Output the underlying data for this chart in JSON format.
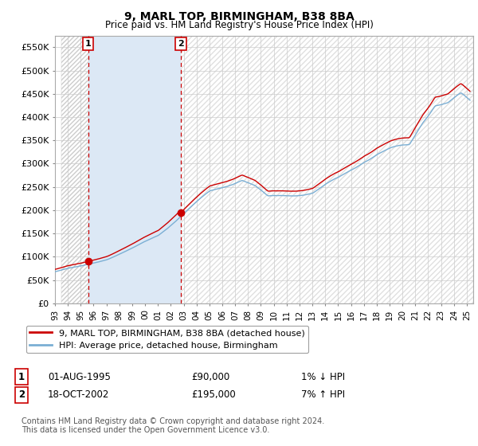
{
  "title": "9, MARL TOP, BIRMINGHAM, B38 8BA",
  "subtitle": "Price paid vs. HM Land Registry's House Price Index (HPI)",
  "ylabel_ticks": [
    "£0",
    "£50K",
    "£100K",
    "£150K",
    "£200K",
    "£250K",
    "£300K",
    "£350K",
    "£400K",
    "£450K",
    "£500K",
    "£550K"
  ],
  "ytick_vals": [
    0,
    50000,
    100000,
    150000,
    200000,
    250000,
    300000,
    350000,
    400000,
    450000,
    500000,
    550000
  ],
  "ylim": [
    0,
    575000
  ],
  "hpi_color": "#7bafd4",
  "price_color": "#cc0000",
  "sale1_date_num": 1995.58,
  "sale1_price": 90000,
  "sale2_date_num": 2002.79,
  "sale2_price": 195000,
  "legend_label1": "9, MARL TOP, BIRMINGHAM, B38 8BA (detached house)",
  "legend_label2": "HPI: Average price, detached house, Birmingham",
  "table_row1": [
    "1",
    "01-AUG-1995",
    "£90,000",
    "1% ↓ HPI"
  ],
  "table_row2": [
    "2",
    "18-OCT-2002",
    "£195,000",
    "7% ↑ HPI"
  ],
  "footer": "Contains HM Land Registry data © Crown copyright and database right 2024.\nThis data is licensed under the Open Government Licence v3.0.",
  "background_color": "#ffffff",
  "plot_bg_color": "#ffffff",
  "highlight_bg": "#dce8f5",
  "hatch_color": "#cccccc",
  "grid_color": "#cccccc",
  "xlim_start": 1993.5,
  "xlim_end": 2025.5
}
